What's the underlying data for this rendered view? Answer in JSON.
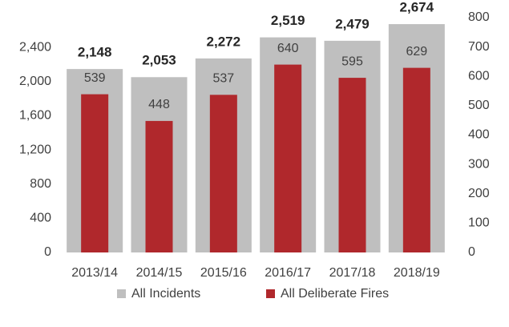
{
  "chart_data": {
    "type": "bar",
    "categories": [
      "2013/14",
      "2014/15",
      "2015/16",
      "2016/17",
      "2017/18",
      "2018/19"
    ],
    "series": [
      {
        "name": "All Incidents",
        "color": "#bfbfbf",
        "values": [
          2148,
          2053,
          2272,
          2519,
          2479,
          2674
        ],
        "value_labels": [
          "2,148",
          "2,053",
          "2,272",
          "2,519",
          "2,479",
          "2,674"
        ]
      },
      {
        "name": "All Deliberate Fires",
        "color": "#b0282c",
        "axis": "y2",
        "values": [
          539,
          448,
          537,
          640,
          595,
          629
        ]
      }
    ],
    "ylim": [
      0,
      2750
    ],
    "yticks": [
      0,
      {
        "value": 400,
        "label": "400"
      },
      {
        "value": 800,
        "label": "800"
      },
      {
        "value": 1200,
        "label": "1,200"
      },
      {
        "value": 1600,
        "label": "1,600"
      },
      {
        "value": 2000,
        "label": "2,000"
      },
      {
        "value": 2400,
        "label": "2,400"
      }
    ],
    "y2lim": [
      0,
      800
    ],
    "y2ticks": [
      0,
      100,
      200,
      300,
      400,
      500,
      600,
      700,
      800
    ],
    "legend": "bottom"
  }
}
